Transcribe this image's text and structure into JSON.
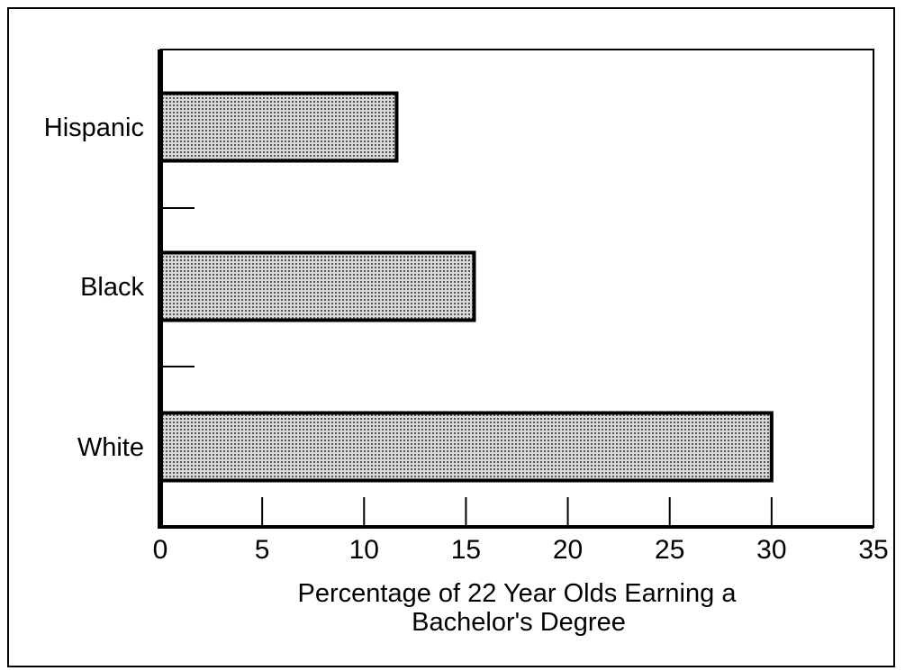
{
  "chart_data": {
    "type": "bar",
    "orientation": "horizontal",
    "categories": [
      "Hispanic",
      "Black",
      "White"
    ],
    "values": [
      11.6,
      15.4,
      30
    ],
    "xlabel": "Percentage of 22 Year Olds Earning a Bachelor's Degree",
    "xlabel_lines": [
      "Percentage of 22 Year Olds Earning a",
      "Bachelor's Degree"
    ],
    "ylabel": "",
    "xlim": [
      0,
      35
    ],
    "xticks": [
      0,
      5,
      10,
      15,
      20,
      25,
      30,
      35
    ],
    "grid": false,
    "legend": "none",
    "bar_pattern": "dotted",
    "colors": {
      "bar_fill": "#d9d9d9",
      "bar_dot": "#555555",
      "outline": "#000000",
      "background": "#ffffff"
    }
  }
}
